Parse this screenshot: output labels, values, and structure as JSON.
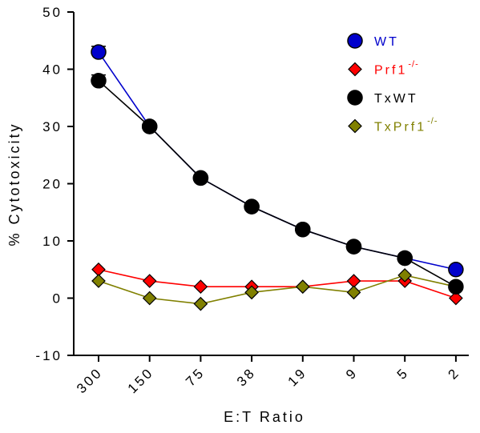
{
  "chart_data": {
    "type": "line",
    "xlabel": "E:T Ratio",
    "ylabel": "% Cytotoxicity",
    "ylim": [
      -10,
      50
    ],
    "yticks": [
      -10,
      0,
      10,
      20,
      30,
      40,
      50
    ],
    "categories": [
      "300",
      "150",
      "75",
      "38",
      "19",
      "9",
      "5",
      "2"
    ],
    "legend_position": "top-right",
    "series": [
      {
        "name": "WT",
        "superscript": "",
        "color": "#0000cc",
        "marker": "circle",
        "values": [
          43,
          30,
          21,
          16,
          12,
          9,
          7,
          5
        ],
        "error": [
          1,
          0,
          0,
          0,
          0,
          0,
          0,
          0
        ]
      },
      {
        "name": "Prf1",
        "superscript": "-/-",
        "color": "#ff0000",
        "marker": "diamond",
        "values": [
          5,
          3,
          2,
          2,
          2,
          3,
          3,
          0
        ],
        "error": [
          0,
          0,
          0,
          0,
          0,
          0,
          0,
          0
        ]
      },
      {
        "name": "TxWT",
        "superscript": "",
        "color": "#000000",
        "marker": "circle",
        "values": [
          38,
          30,
          21,
          16,
          12,
          9,
          7,
          2
        ],
        "error": [
          1,
          0,
          0,
          0,
          0,
          0,
          0,
          0
        ]
      },
      {
        "name": "TxPrf1",
        "superscript": "-/-",
        "color": "#808000",
        "marker": "diamond",
        "values": [
          3,
          0,
          -1,
          1,
          2,
          1,
          4,
          2
        ],
        "error": [
          0,
          0,
          0,
          0,
          0,
          0,
          0,
          0
        ]
      }
    ]
  }
}
